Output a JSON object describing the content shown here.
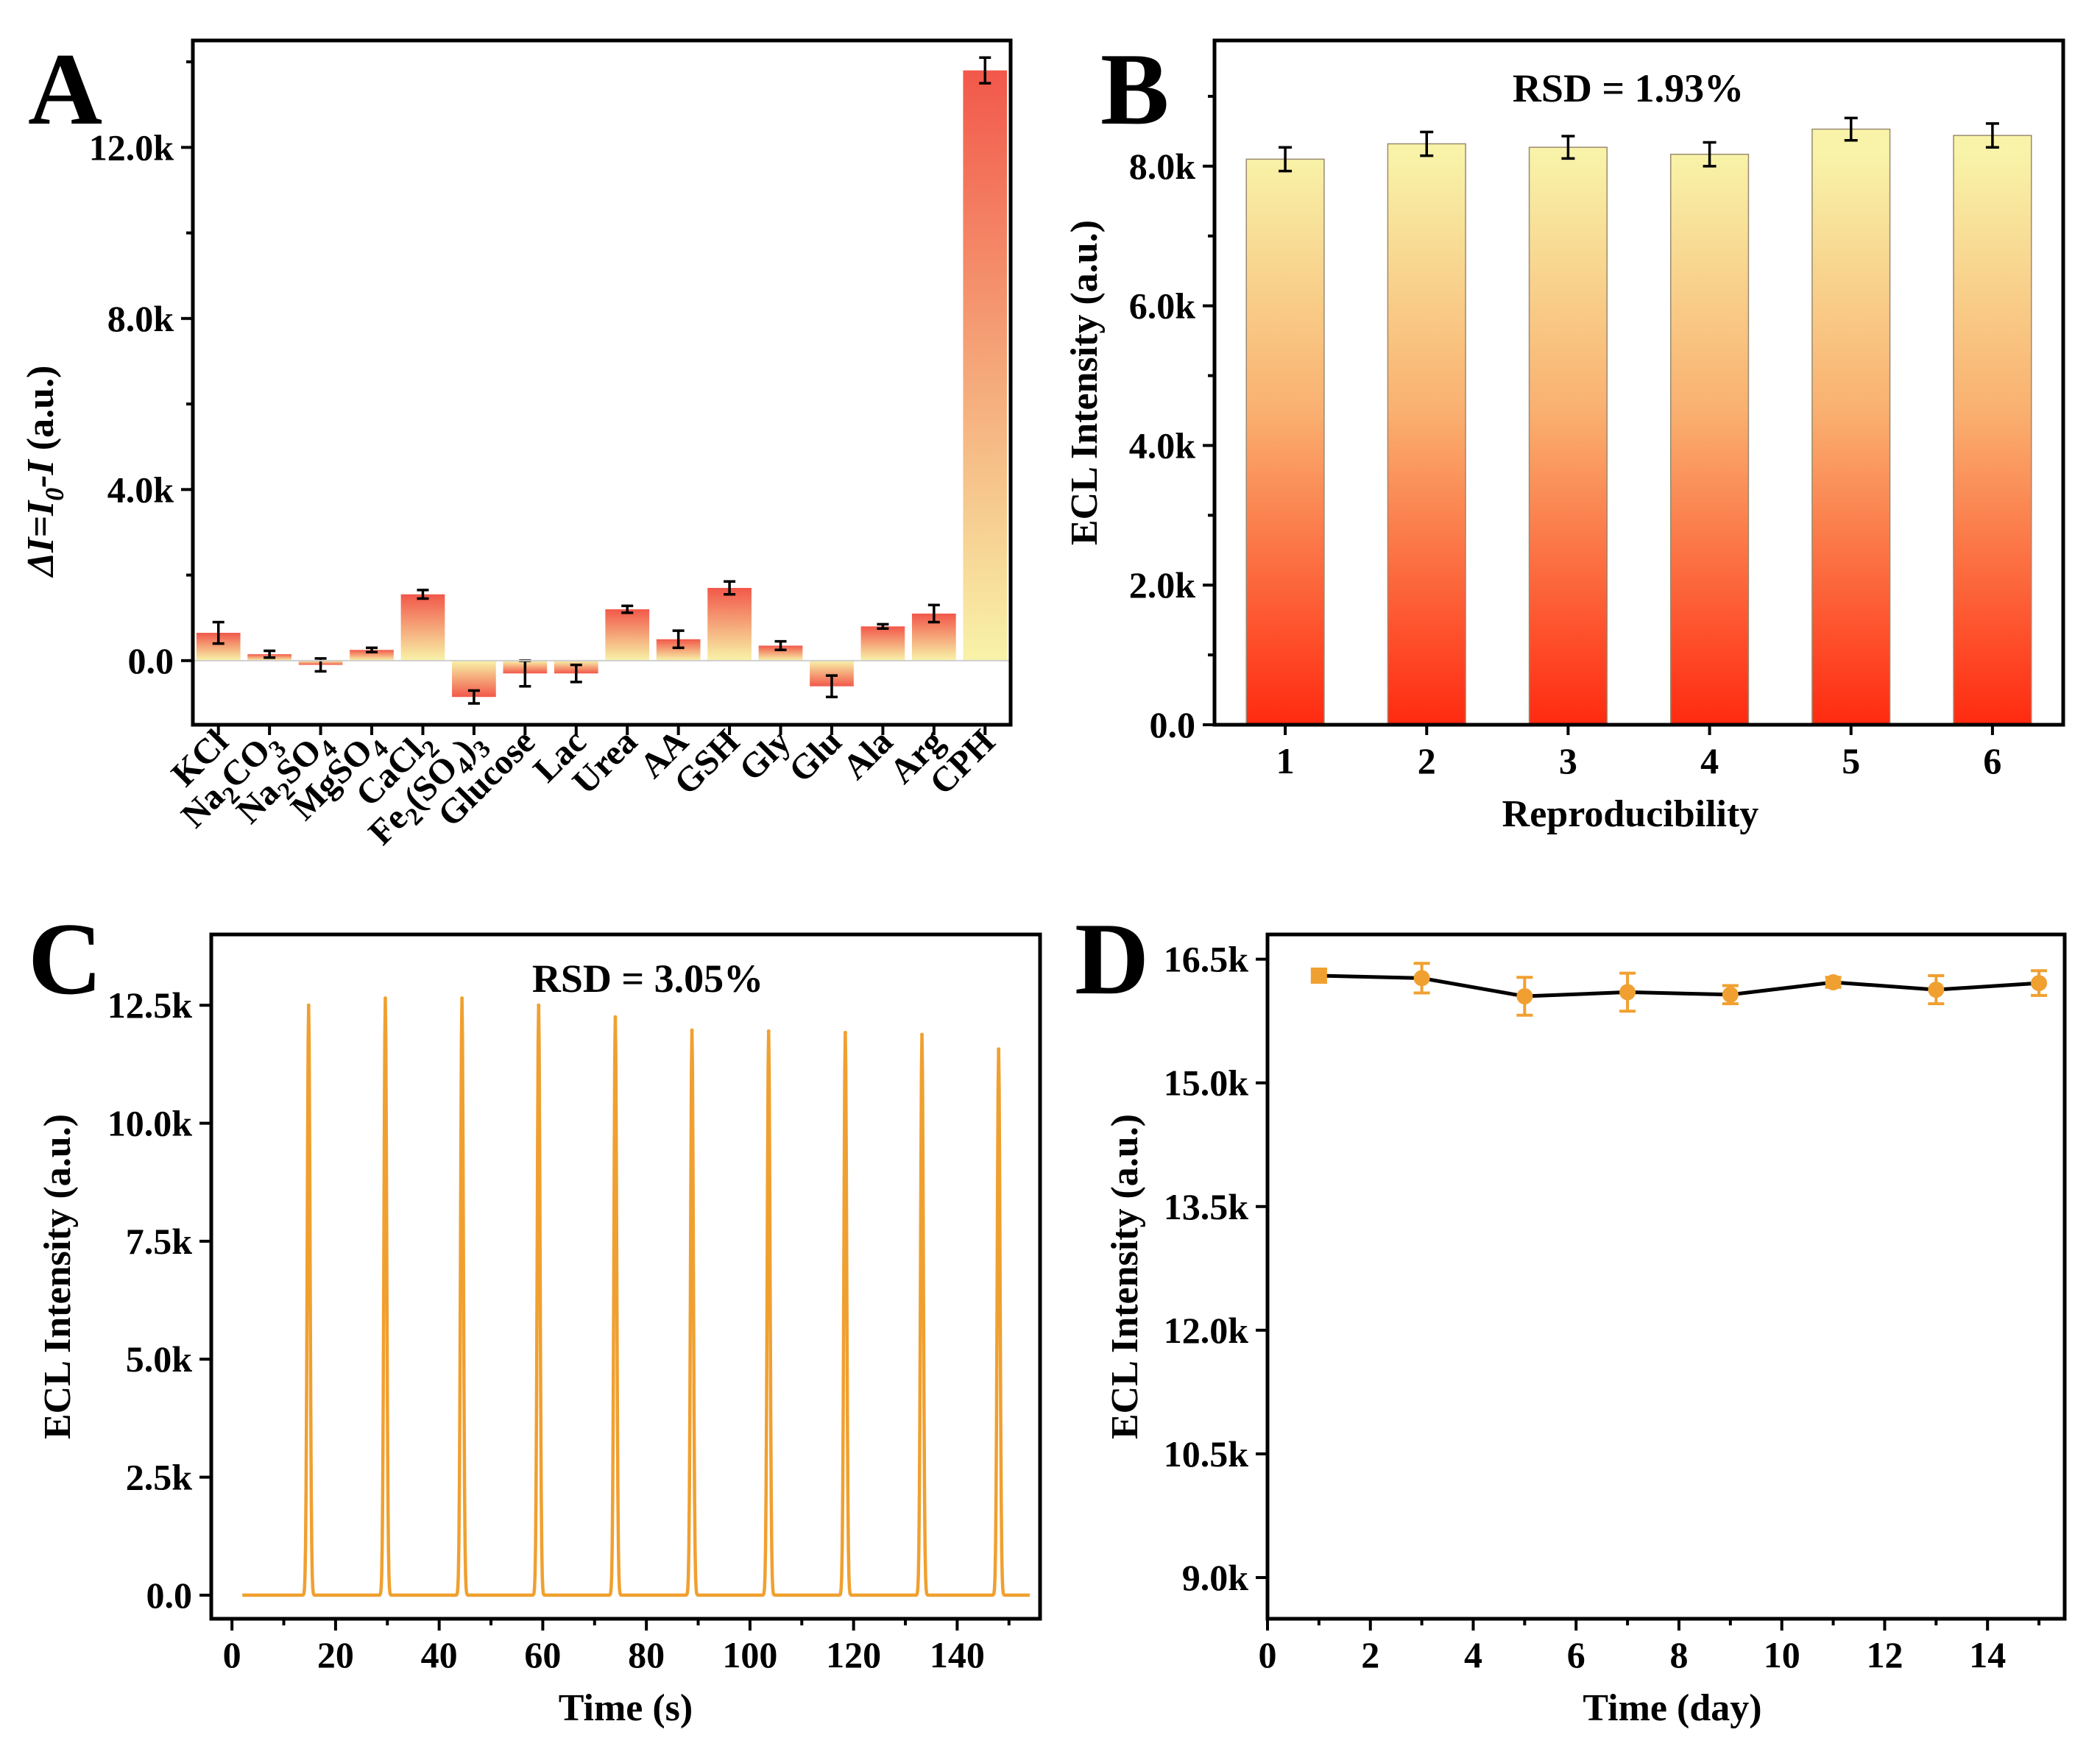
{
  "colors": {
    "red": "#FF2A10",
    "yellow": "#F8F3A8",
    "orange": "#F0A030",
    "axis": "#000000",
    "line": "#000000"
  },
  "chart_data": [
    {
      "panel": "A",
      "type": "bar",
      "title": "",
      "xlabel": "",
      "ylabel": "ΔI=I0-I (a.u.)",
      "ylabel_parts": [
        "ΔI=I",
        "0",
        "-I",
        " (a.u.)"
      ],
      "ylim": [
        -1500,
        14500
      ],
      "yticks": [
        0,
        4000,
        8000,
        12000
      ],
      "ytick_labels": [
        "0.0",
        "4.0k",
        "8.0k",
        "12.0k"
      ],
      "categories": [
        "KCl",
        "Na2CO3",
        "Na2SO4",
        "MgSO4",
        "CaCl2",
        "Fe2(SO4)3",
        "Glucose",
        "Lac",
        "Urea",
        "AA",
        "GSH",
        "Gly",
        "Glu",
        "Ala",
        "Arg",
        "CPH"
      ],
      "category_labels": [
        [
          [
            "KCl",
            ""
          ]
        ],
        [
          [
            "Na",
            ""
          ],
          [
            "2",
            "sub"
          ],
          [
            "CO",
            ""
          ],
          [
            "3",
            "sub"
          ]
        ],
        [
          [
            "Na",
            ""
          ],
          [
            "2",
            "sub"
          ],
          [
            "SO",
            ""
          ],
          [
            "4",
            "sub"
          ]
        ],
        [
          [
            "MgSO",
            ""
          ],
          [
            "4",
            "sub"
          ]
        ],
        [
          [
            "CaCl",
            ""
          ],
          [
            "2",
            "sub"
          ]
        ],
        [
          [
            "Fe",
            ""
          ],
          [
            "2",
            "sub"
          ],
          [
            "(SO",
            ""
          ],
          [
            "4",
            "sub"
          ],
          [
            ")",
            ""
          ],
          [
            "3",
            "sub"
          ]
        ],
        [
          [
            "Glucose",
            ""
          ]
        ],
        [
          [
            "Lac",
            ""
          ]
        ],
        [
          [
            "Urea",
            ""
          ]
        ],
        [
          [
            "AA",
            ""
          ]
        ],
        [
          [
            "GSH",
            ""
          ]
        ],
        [
          [
            "Gly",
            ""
          ]
        ],
        [
          [
            "Glu",
            ""
          ]
        ],
        [
          [
            "Ala",
            ""
          ]
        ],
        [
          [
            "Arg",
            ""
          ]
        ],
        [
          [
            "CPH",
            ""
          ]
        ]
      ],
      "values": [
        650,
        150,
        -100,
        250,
        1550,
        -850,
        -300,
        -300,
        1200,
        500,
        1700,
        350,
        -600,
        800,
        1100,
        13800
      ],
      "errors": [
        250,
        80,
        150,
        50,
        100,
        150,
        300,
        200,
        80,
        200,
        150,
        100,
        250,
        50,
        200,
        300
      ]
    },
    {
      "panel": "B",
      "type": "bar",
      "title": "",
      "xlabel": "Reproducibility",
      "ylabel": "ECL Intensity (a.u.)",
      "ylim": [
        0,
        9800
      ],
      "yticks": [
        0,
        2000,
        4000,
        6000,
        8000
      ],
      "ytick_labels": [
        "0.0",
        "2.0k",
        "4.0k",
        "6.0k",
        "8.0k"
      ],
      "categories": [
        "1",
        "2",
        "3",
        "4",
        "5",
        "6"
      ],
      "values": [
        8100,
        8320,
        8270,
        8170,
        8530,
        8440
      ],
      "errors": [
        170,
        170,
        160,
        170,
        160,
        170
      ],
      "annotation": "RSD = 1.93%"
    },
    {
      "panel": "C",
      "type": "line",
      "title": "",
      "xlabel": "Time (s)",
      "ylabel": "ECL Intensity (a.u.)",
      "xlim": [
        -4,
        156
      ],
      "ylim": [
        -500,
        14000
      ],
      "xticks": [
        0,
        20,
        40,
        60,
        80,
        100,
        120,
        140
      ],
      "yticks": [
        0,
        2500,
        5000,
        7500,
        10000,
        12500
      ],
      "ytick_labels": [
        "0.0",
        "2.5k",
        "5.0k",
        "7.5k",
        "10.0k",
        "12.5k"
      ],
      "baseline_range": [
        2,
        154
      ],
      "peak_times": [
        14.8,
        29.6,
        44.4,
        59.2,
        74,
        88.8,
        103.6,
        118.4,
        133.2,
        148
      ],
      "peak_values": [
        12500,
        12650,
        12650,
        12500,
        12250,
        11970,
        11950,
        11920,
        11880,
        11570
      ],
      "annotation": "RSD = 3.05%"
    },
    {
      "panel": "D",
      "type": "line",
      "title": "",
      "xlabel": "Time (day)",
      "ylabel": "ECL Intensity (a.u.)",
      "xlim": [
        0,
        15.5
      ],
      "ylim": [
        8500,
        16800
      ],
      "xticks": [
        0,
        2,
        4,
        6,
        8,
        10,
        12,
        14
      ],
      "yticks": [
        9000,
        10500,
        12000,
        13500,
        15000,
        16500
      ],
      "ytick_labels": [
        "9.0k",
        "10.5k",
        "12.0k",
        "13.5k",
        "15.0k",
        "16.5k"
      ],
      "x": [
        1,
        3,
        5,
        7,
        9,
        11,
        13,
        15
      ],
      "y": [
        16300,
        16270,
        16050,
        16100,
        16070,
        16220,
        16130,
        16210
      ],
      "errors": [
        80,
        180,
        230,
        230,
        110,
        60,
        170,
        150
      ]
    }
  ]
}
